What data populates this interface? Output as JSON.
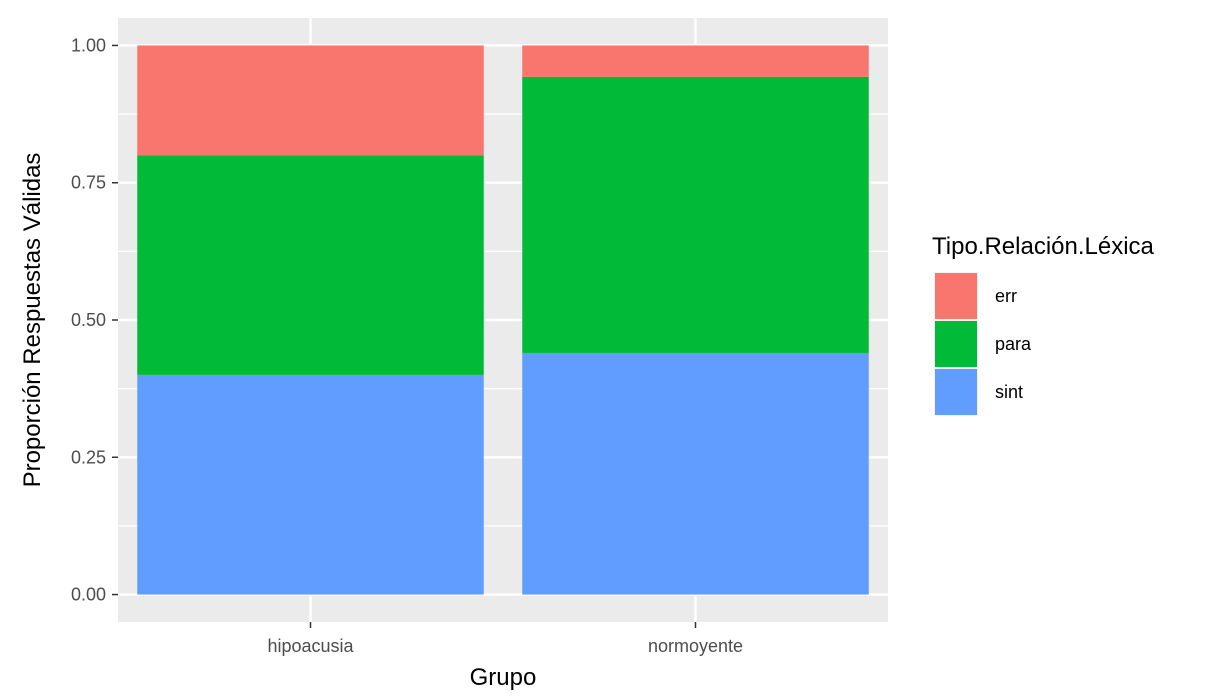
{
  "chart_data": {
    "type": "bar",
    "stacked": true,
    "categories": [
      "hipoacusia",
      "normoyente"
    ],
    "series": [
      {
        "name": "sint",
        "values": [
          0.4,
          0.44
        ],
        "color": "#619CFF"
      },
      {
        "name": "para",
        "values": [
          0.4,
          0.503
        ],
        "color": "#00BA38"
      },
      {
        "name": "err",
        "values": [
          0.2,
          0.057
        ],
        "color": "#F8766D"
      }
    ],
    "legend_order": [
      "err",
      "para",
      "sint"
    ],
    "xlabel": "Grupo",
    "ylabel": "Proporción Respuestas Válidas",
    "ylim": [
      -0.05,
      1.05
    ],
    "yticks": [
      0.0,
      0.25,
      0.5,
      0.75,
      1.0
    ],
    "ytick_labels": [
      "0.00",
      "0.25",
      "0.50",
      "0.75",
      "1.00"
    ],
    "legend_title": "Tipo.Relación.Léxica",
    "legend_position": "right",
    "grid": true,
    "panel_background": "#EBEBEB",
    "grid_color": "#FFFFFF"
  }
}
